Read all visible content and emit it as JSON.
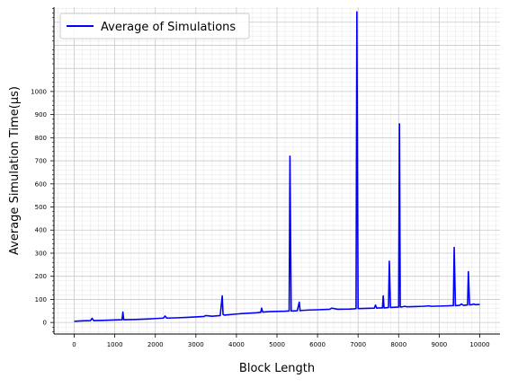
{
  "chart_data": {
    "type": "line",
    "title": "",
    "xlabel": "Block Length",
    "ylabel": "Average Simulation Time(µs)",
    "xlim": [
      -500,
      10500
    ],
    "ylim": [
      -50,
      1365
    ],
    "x_ticks": [
      0,
      1000,
      2000,
      3000,
      4000,
      5000,
      6000,
      7000,
      8000,
      9000,
      10000
    ],
    "y_ticks": [
      0,
      100,
      200,
      300,
      400,
      500,
      600,
      700,
      800,
      900,
      1000
    ],
    "x_tick_labels": [
      "0",
      "1000",
      "2000",
      "3000",
      "4000",
      "5000",
      "6000",
      "7000",
      "8000",
      "9000",
      "10000"
    ],
    "y_tick_labels": [
      "0",
      "100",
      "200",
      "300",
      "400",
      "500",
      "600",
      "700",
      "800",
      "900",
      "1000"
    ],
    "grid": true,
    "minor_grid": true,
    "legend_position": "top-left",
    "series": [
      {
        "name": "Average of Simulations",
        "color": "#0000ff",
        "x": [
          0,
          200,
          400,
          440,
          480,
          700,
          1000,
          1180,
          1200,
          1220,
          1500,
          1800,
          2000,
          2200,
          2240,
          2280,
          2500,
          2800,
          3000,
          3200,
          3240,
          3400,
          3600,
          3650,
          3670,
          3700,
          3900,
          4100,
          4300,
          4500,
          4600,
          4620,
          4650,
          4800,
          5000,
          5200,
          5300,
          5320,
          5350,
          5400,
          5500,
          5550,
          5570,
          5600,
          5700,
          5800,
          6000,
          6300,
          6350,
          6500,
          6800,
          6900,
          6950,
          6970,
          7000,
          7200,
          7400,
          7430,
          7460,
          7500,
          7600,
          7620,
          7640,
          7700,
          7750,
          7770,
          7800,
          7900,
          8000,
          8020,
          8040,
          8100,
          8150,
          8200,
          8400,
          8600,
          8750,
          8800,
          9000,
          9200,
          9350,
          9370,
          9400,
          9500,
          9550,
          9600,
          9650,
          9700,
          9720,
          9750,
          9800,
          9850,
          9900,
          10000
        ],
        "y": [
          5,
          7,
          8,
          18,
          8,
          9,
          11,
          12,
          45,
          12,
          13,
          15,
          17,
          19,
          28,
          19,
          20,
          22,
          24,
          26,
          30,
          27,
          30,
          115,
          35,
          32,
          35,
          38,
          40,
          42,
          44,
          62,
          45,
          47,
          48,
          49,
          50,
          720,
          50,
          50,
          51,
          88,
          51,
          52,
          53,
          54,
          55,
          57,
          62,
          57,
          58,
          59,
          60,
          1345,
          60,
          61,
          62,
          75,
          62,
          63,
          63,
          115,
          63,
          64,
          65,
          265,
          65,
          66,
          67,
          860,
          67,
          68,
          70,
          68,
          69,
          70,
          72,
          70,
          71,
          72,
          73,
          325,
          73,
          74,
          80,
          74,
          75,
          76,
          220,
          76,
          77,
          80,
          77,
          78
        ]
      }
    ]
  }
}
